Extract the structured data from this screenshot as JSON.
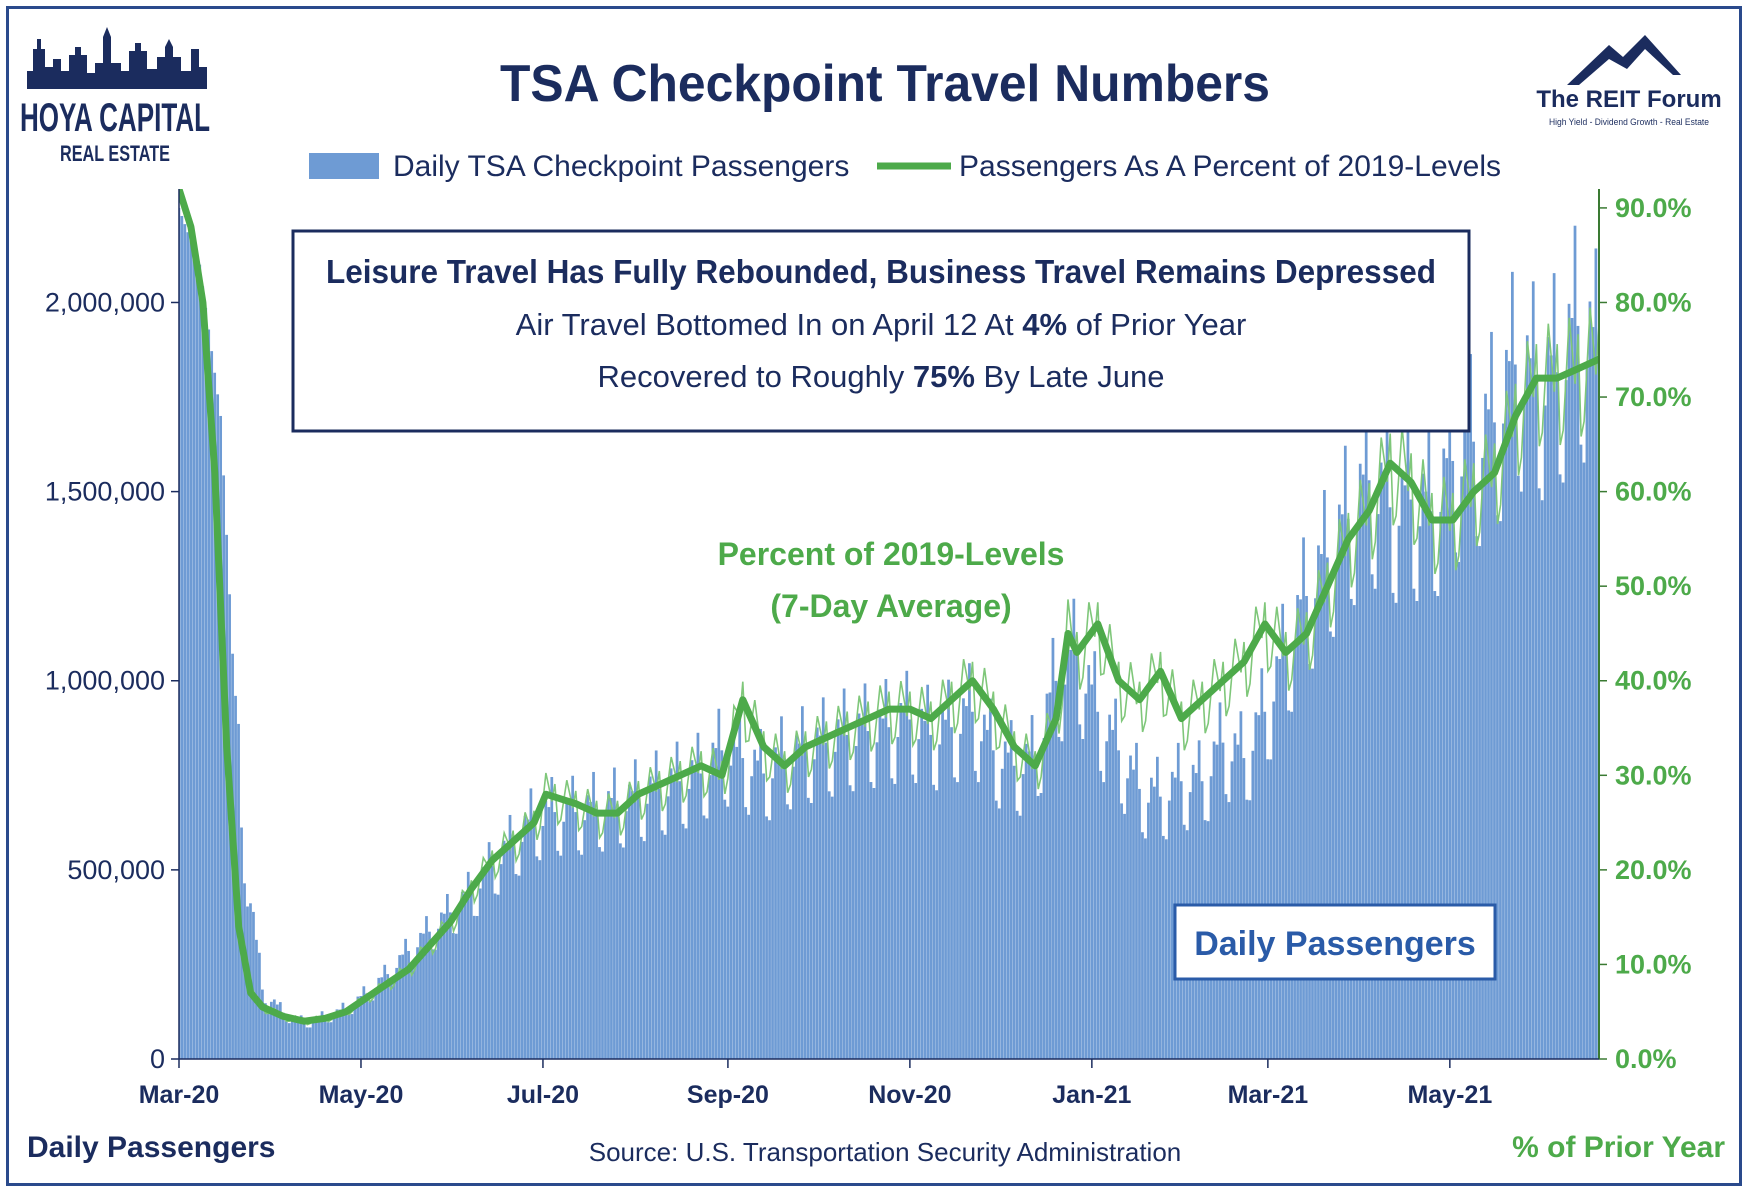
{
  "chart_data": {
    "type": "bar+line",
    "title": "TSA Checkpoint Travel Numbers",
    "legend": {
      "placement": "top",
      "bars_label": "Daily TSA Checkpoint Passengers",
      "line_label": "Passengers As A Percent of 2019-Levels"
    },
    "annotation_box": {
      "heading": "Leisure Travel Has Fully Rebounded, Business Travel Remains Depressed",
      "line1": {
        "pre": "Air Travel Bottomed In on April 12 At ",
        "bold": "4%",
        "post": " of Prior Year"
      },
      "line2": {
        "pre": "Recovered to Roughly ",
        "bold": "75%",
        "post": " By Late June"
      }
    },
    "line_annotation": [
      "Percent of 2019-Levels",
      "(7-Day Average)"
    ],
    "bars_annotation": "Daily Passengers",
    "left_axis": {
      "label": "Daily Passengers",
      "ylim": [
        0,
        2300000
      ],
      "ticks": [
        0,
        500000,
        1000000,
        1500000,
        2000000
      ],
      "tick_labels": [
        "0",
        "500,000",
        "1,000,000",
        "1,500,000",
        "2,000,000"
      ]
    },
    "right_axis": {
      "label": "% of Prior Year",
      "ylim": [
        0,
        92
      ],
      "ticks": [
        0,
        10,
        20,
        30,
        40,
        50,
        60,
        70,
        80,
        90
      ],
      "tick_labels": [
        "0.0%",
        "10.0%",
        "20.0%",
        "30.0%",
        "40.0%",
        "50.0%",
        "60.0%",
        "70.0%",
        "80.0%",
        "90.0%"
      ]
    },
    "x_axis": {
      "ticks": [
        "Mar-20",
        "May-20",
        "Jul-20",
        "Sep-20",
        "Nov-20",
        "Jan-21",
        "Mar-21",
        "May-21"
      ],
      "tick_dates": [
        "2020-03-01",
        "2020-05-01",
        "2020-07-01",
        "2020-09-01",
        "2020-11-01",
        "2021-01-01",
        "2021-03-01",
        "2021-05-01"
      ],
      "range": [
        "2020-03-01",
        "2021-06-20"
      ]
    },
    "daily_passengers_series": {
      "name": "Daily TSA Checkpoint Passengers",
      "anchor_dates": [
        "2020-03-01",
        "2020-03-08",
        "2020-03-15",
        "2020-03-22",
        "2020-03-29",
        "2020-04-05",
        "2020-04-12",
        "2020-04-19",
        "2020-04-26",
        "2020-05-03",
        "2020-05-10",
        "2020-05-17",
        "2020-05-24",
        "2020-05-31",
        "2020-06-07",
        "2020-06-14",
        "2020-06-21",
        "2020-06-28",
        "2020-07-05",
        "2020-07-12",
        "2020-07-19",
        "2020-07-26",
        "2020-08-02",
        "2020-08-09",
        "2020-08-16",
        "2020-08-23",
        "2020-08-30",
        "2020-09-06",
        "2020-09-13",
        "2020-09-20",
        "2020-09-27",
        "2020-10-04",
        "2020-10-11",
        "2020-10-18",
        "2020-10-25",
        "2020-11-01",
        "2020-11-08",
        "2020-11-15",
        "2020-11-22",
        "2020-11-29",
        "2020-12-06",
        "2020-12-13",
        "2020-12-20",
        "2020-12-27",
        "2021-01-03",
        "2021-01-10",
        "2021-01-17",
        "2021-01-24",
        "2021-01-31",
        "2021-02-07",
        "2021-02-14",
        "2021-02-21",
        "2021-02-28",
        "2021-03-07",
        "2021-03-14",
        "2021-03-21",
        "2021-03-28",
        "2021-04-04",
        "2021-04-11",
        "2021-04-18",
        "2021-04-25",
        "2021-05-02",
        "2021-05-09",
        "2021-05-16",
        "2021-05-23",
        "2021-05-30",
        "2021-06-06",
        "2021-06-13",
        "2021-06-20"
      ],
      "values": [
        2250000,
        2100000,
        1700000,
        600000,
        180000,
        120000,
        95000,
        110000,
        130000,
        170000,
        220000,
        280000,
        330000,
        380000,
        430000,
        500000,
        560000,
        620000,
        640000,
        640000,
        650000,
        660000,
        680000,
        700000,
        720000,
        740000,
        800000,
        780000,
        740000,
        780000,
        800000,
        820000,
        840000,
        850000,
        860000,
        880000,
        840000,
        860000,
        900000,
        800000,
        760000,
        780000,
        980000,
        1050000,
        900000,
        800000,
        700000,
        680000,
        720000,
        720000,
        820000,
        780000,
        900000,
        1050000,
        1200000,
        1300000,
        1400000,
        1500000,
        1430000,
        1450000,
        1420000,
        1550000,
        1600000,
        1650000,
        1800000,
        1750000,
        1780000,
        1900000,
        1820000
      ]
    },
    "percent_2019_series": {
      "name": "Passengers As A Percent of 2019-Levels",
      "anchor_dates": [
        "2020-03-01",
        "2020-03-05",
        "2020-03-09",
        "2020-03-13",
        "2020-03-17",
        "2020-03-21",
        "2020-03-25",
        "2020-03-29",
        "2020-04-05",
        "2020-04-12",
        "2020-04-19",
        "2020-04-26",
        "2020-05-03",
        "2020-05-10",
        "2020-05-17",
        "2020-05-24",
        "2020-05-31",
        "2020-06-07",
        "2020-06-14",
        "2020-06-21",
        "2020-06-28",
        "2020-07-02",
        "2020-07-12",
        "2020-07-19",
        "2020-07-26",
        "2020-08-02",
        "2020-08-09",
        "2020-08-16",
        "2020-08-23",
        "2020-08-30",
        "2020-09-06",
        "2020-09-13",
        "2020-09-20",
        "2020-09-27",
        "2020-10-04",
        "2020-10-11",
        "2020-10-18",
        "2020-10-25",
        "2020-11-01",
        "2020-11-08",
        "2020-11-15",
        "2020-11-22",
        "2020-11-29",
        "2020-12-06",
        "2020-12-13",
        "2020-12-20",
        "2020-12-24",
        "2020-12-27",
        "2021-01-03",
        "2021-01-10",
        "2021-01-17",
        "2021-01-24",
        "2021-01-31",
        "2021-02-07",
        "2021-02-14",
        "2021-02-21",
        "2021-02-28",
        "2021-03-07",
        "2021-03-14",
        "2021-03-21",
        "2021-03-28",
        "2021-04-04",
        "2021-04-11",
        "2021-04-18",
        "2021-04-25",
        "2021-05-02",
        "2021-05-09",
        "2021-05-16",
        "2021-05-23",
        "2021-05-30",
        "2021-06-06",
        "2021-06-13",
        "2021-06-20"
      ],
      "values": [
        92,
        88,
        80,
        62,
        33,
        14,
        7,
        5.5,
        4.5,
        4,
        4.3,
        5,
        6.5,
        8,
        9.5,
        12,
        14.5,
        18,
        21,
        23,
        25,
        28,
        27,
        26,
        26,
        28,
        29,
        30,
        31,
        30,
        38,
        33,
        31,
        33,
        34,
        35,
        36,
        37,
        37,
        36,
        38,
        40,
        37,
        33,
        31,
        36,
        45,
        43,
        46,
        40,
        38,
        41,
        36,
        38,
        40,
        42,
        46,
        43,
        45,
        50,
        55,
        58,
        63,
        61,
        57,
        57,
        60,
        62,
        68,
        72,
        72,
        73,
        74
      ]
    }
  },
  "logo_left": {
    "line1": "HOYA CAPITAL",
    "line2": "REAL ESTATE"
  },
  "logo_right": {
    "title": "The REIT Forum",
    "tagline": "High Yield - Dividend Growth - Real Estate"
  },
  "source": "Source: U.S. Transportation Security Administration",
  "colors": {
    "bars": "#6e9bd4",
    "line": "#4daa4a",
    "thin_line": "#7fc77a",
    "navy": "#1b2c5e",
    "frame": "#2a4a8c"
  }
}
